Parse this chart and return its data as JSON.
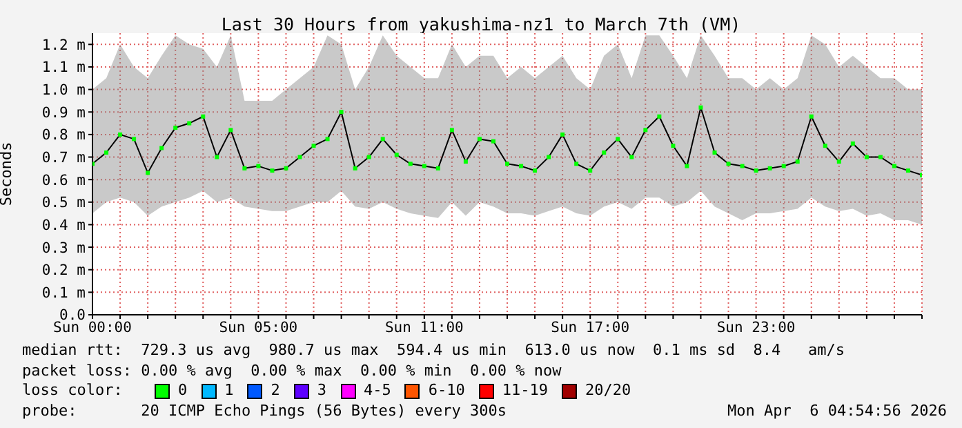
{
  "chart_data": {
    "type": "line",
    "title": "Last 30 Hours from yakushima-nz1 to March 7th (VM)",
    "ylabel": "Seconds",
    "categories": [
      "Sun 00:00",
      null,
      null,
      null,
      null,
      null,
      null,
      null,
      null,
      null,
      null,
      null,
      "Sun 05:00",
      null,
      null,
      null,
      null,
      null,
      null,
      null,
      null,
      null,
      null,
      null,
      "Sun 11:00",
      null,
      null,
      null,
      null,
      null,
      null,
      null,
      null,
      null,
      null,
      null,
      "Sun 17:00",
      null,
      null,
      null,
      null,
      null,
      null,
      null,
      null,
      null,
      null,
      null,
      "Sun 23:00",
      null,
      null,
      null,
      null,
      null,
      null,
      null,
      null,
      null,
      null,
      null,
      null
    ],
    "series": [
      {
        "name": "0",
        "color": "#00ff00",
        "values": [
          0.67,
          0.72,
          0.8,
          0.78,
          0.63,
          0.74,
          0.83,
          0.85,
          0.88,
          0.7,
          0.82,
          0.65,
          0.66,
          0.64,
          0.65,
          0.7,
          0.75,
          0.78,
          0.9,
          0.65,
          0.7,
          0.78,
          0.71,
          0.67,
          0.66,
          0.65,
          0.82,
          0.68,
          0.78,
          0.77,
          0.67,
          0.66,
          0.64,
          0.7,
          0.8,
          0.67,
          0.64,
          0.72,
          0.78,
          0.7,
          0.82,
          0.88,
          0.75,
          0.66,
          0.92,
          0.72,
          0.67,
          0.66,
          0.64,
          0.65,
          0.66,
          0.68,
          0.88,
          0.75,
          0.68,
          0.76,
          0.7,
          0.7,
          0.66,
          0.64,
          0.62
        ],
        "lower": [
          0.45,
          0.5,
          0.52,
          0.5,
          0.44,
          0.48,
          0.5,
          0.52,
          0.55,
          0.5,
          0.52,
          0.48,
          0.47,
          0.46,
          0.46,
          0.48,
          0.5,
          0.5,
          0.55,
          0.48,
          0.47,
          0.5,
          0.47,
          0.45,
          0.44,
          0.43,
          0.5,
          0.44,
          0.5,
          0.48,
          0.45,
          0.45,
          0.44,
          0.46,
          0.48,
          0.45,
          0.44,
          0.48,
          0.5,
          0.47,
          0.52,
          0.52,
          0.48,
          0.5,
          0.55,
          0.48,
          0.45,
          0.42,
          0.45,
          0.45,
          0.46,
          0.47,
          0.52,
          0.48,
          0.46,
          0.47,
          0.44,
          0.45,
          0.42,
          0.42,
          0.4
        ],
        "upper": [
          1.0,
          1.05,
          1.2,
          1.1,
          1.05,
          1.15,
          1.24,
          1.2,
          1.18,
          1.1,
          1.24,
          0.95,
          0.95,
          0.95,
          1.0,
          1.05,
          1.1,
          1.24,
          1.2,
          1.0,
          1.1,
          1.24,
          1.15,
          1.1,
          1.05,
          1.05,
          1.2,
          1.1,
          1.15,
          1.15,
          1.05,
          1.1,
          1.05,
          1.1,
          1.15,
          1.05,
          1.0,
          1.15,
          1.2,
          1.05,
          1.24,
          1.24,
          1.15,
          1.05,
          1.24,
          1.15,
          1.05,
          1.05,
          1.0,
          1.05,
          1.0,
          1.05,
          1.24,
          1.2,
          1.1,
          1.15,
          1.1,
          1.05,
          1.05,
          1.0,
          1.0
        ]
      },
      {
        "name": "1",
        "color": "#00b8ff",
        "values": [
          null,
          null,
          null,
          null,
          null,
          null,
          null,
          null,
          null,
          null,
          null,
          null,
          null,
          null,
          null,
          null,
          null,
          null,
          null,
          null,
          null,
          null,
          null,
          null,
          null,
          null,
          null,
          null,
          null,
          null,
          null,
          null,
          null,
          null,
          null,
          null,
          null,
          null,
          null,
          null,
          null,
          null,
          null,
          null,
          null,
          null,
          null,
          null,
          null,
          null,
          null,
          null,
          null,
          null,
          null,
          null,
          null,
          null,
          null,
          null,
          null
        ]
      },
      {
        "name": "2",
        "color": "#0059ff",
        "values": [
          null,
          null,
          null,
          null,
          null,
          null,
          null,
          null,
          null,
          null,
          null,
          null,
          null,
          null,
          null,
          null,
          null,
          null,
          null,
          null,
          null,
          null,
          null,
          null,
          null,
          null,
          null,
          null,
          null,
          null,
          null,
          null,
          null,
          null,
          null,
          null,
          null,
          null,
          null,
          null,
          null,
          null,
          null,
          null,
          null,
          null,
          null,
          null,
          null,
          null,
          null,
          null,
          null,
          null,
          null,
          null,
          null,
          null,
          null,
          null,
          null
        ]
      },
      {
        "name": "3",
        "color": "#5e00ff",
        "values": [
          null,
          null,
          null,
          null,
          null,
          null,
          null,
          null,
          null,
          null,
          null,
          null,
          null,
          null,
          null,
          null,
          null,
          null,
          null,
          null,
          null,
          null,
          null,
          null,
          null,
          null,
          null,
          null,
          null,
          null,
          null,
          null,
          null,
          null,
          null,
          null,
          null,
          null,
          null,
          null,
          null,
          null,
          null,
          null,
          null,
          null,
          null,
          null,
          null,
          null,
          null,
          null,
          null,
          null,
          null,
          null,
          null,
          null,
          null,
          null,
          null
        ]
      },
      {
        "name": "4-5",
        "color": "#ff00ff",
        "values": [
          null,
          null,
          null,
          null,
          null,
          null,
          null,
          null,
          null,
          null,
          null,
          null,
          null,
          null,
          null,
          null,
          null,
          null,
          null,
          null,
          null,
          null,
          null,
          null,
          null,
          null,
          null,
          null,
          null,
          null,
          null,
          null,
          null,
          null,
          null,
          null,
          null,
          null,
          null,
          null,
          null,
          null,
          null,
          null,
          null,
          null,
          null,
          null,
          null,
          null,
          null,
          null,
          null,
          null,
          null,
          null,
          null,
          null,
          null,
          null,
          null
        ]
      },
      {
        "name": "6-10",
        "color": "#ff5500",
        "values": [
          null,
          null,
          null,
          null,
          null,
          null,
          null,
          null,
          null,
          null,
          null,
          null,
          null,
          null,
          null,
          null,
          null,
          null,
          null,
          null,
          null,
          null,
          null,
          null,
          null,
          null,
          null,
          null,
          null,
          null,
          null,
          null,
          null,
          null,
          null,
          null,
          null,
          null,
          null,
          null,
          null,
          null,
          null,
          null,
          null,
          null,
          null,
          null,
          null,
          null,
          null,
          null,
          null,
          null,
          null,
          null,
          null,
          null,
          null,
          null,
          null
        ]
      },
      {
        "name": "11-19",
        "color": "#ff0000",
        "values": [
          null,
          null,
          null,
          null,
          null,
          null,
          null,
          null,
          null,
          null,
          null,
          null,
          null,
          null,
          null,
          null,
          null,
          null,
          null,
          null,
          null,
          null,
          null,
          null,
          null,
          null,
          null,
          null,
          null,
          null,
          null,
          null,
          null,
          null,
          null,
          null,
          null,
          null,
          null,
          null,
          null,
          null,
          null,
          null,
          null,
          null,
          null,
          null,
          null,
          null,
          null,
          null,
          null,
          null,
          null,
          null,
          null,
          null,
          null,
          null,
          null
        ]
      },
      {
        "name": "20/20",
        "color": "#a10000",
        "values": [
          null,
          null,
          null,
          null,
          null,
          null,
          null,
          null,
          null,
          null,
          null,
          null,
          null,
          null,
          null,
          null,
          null,
          null,
          null,
          null,
          null,
          null,
          null,
          null,
          null,
          null,
          null,
          null,
          null,
          null,
          null,
          null,
          null,
          null,
          null,
          null,
          null,
          null,
          null,
          null,
          null,
          null,
          null,
          null,
          null,
          null,
          null,
          null,
          null,
          null,
          null,
          null,
          null,
          null,
          null,
          null,
          null,
          null,
          null,
          null,
          null
        ]
      }
    ],
    "legend_title": "loss color:",
    "legend": "bottom",
    "ylim": [
      0,
      1.25
    ],
    "yticks": [
      {
        "value": 0,
        "label": "0.0"
      },
      {
        "value": 0.1,
        "label": "0.1 m"
      },
      {
        "value": 0.2,
        "label": "0.2 m"
      },
      {
        "value": 0.3,
        "label": "0.3 m"
      },
      {
        "value": 0.4,
        "label": "0.4 m"
      },
      {
        "value": 0.5,
        "label": "0.5 m"
      },
      {
        "value": 0.6,
        "label": "0.6 m"
      },
      {
        "value": 0.7,
        "label": "0.7 m"
      },
      {
        "value": 0.8,
        "label": "0.8 m"
      },
      {
        "value": 0.9,
        "label": "0.9 m"
      },
      {
        "value": 1.0,
        "label": "1.0 m"
      },
      {
        "value": 1.1,
        "label": "1.1 m"
      },
      {
        "value": 1.2,
        "label": "1.2 m"
      }
    ],
    "grid": true,
    "marker": "square",
    "line_style": "solid",
    "annotations": [
      "median rtt:  729.3 us avg  980.7 us max  594.4 us min  613.0 us now  0.1 ms sd  8.4   am/s",
      "packet loss: 0.00 % avg  0.00 % max  0.00 % min  0.00 % now",
      "probe:       20 ICMP Echo Pings (56 Bytes) every 300s",
      "Mon Apr  6 04:54:56 2026"
    ]
  }
}
